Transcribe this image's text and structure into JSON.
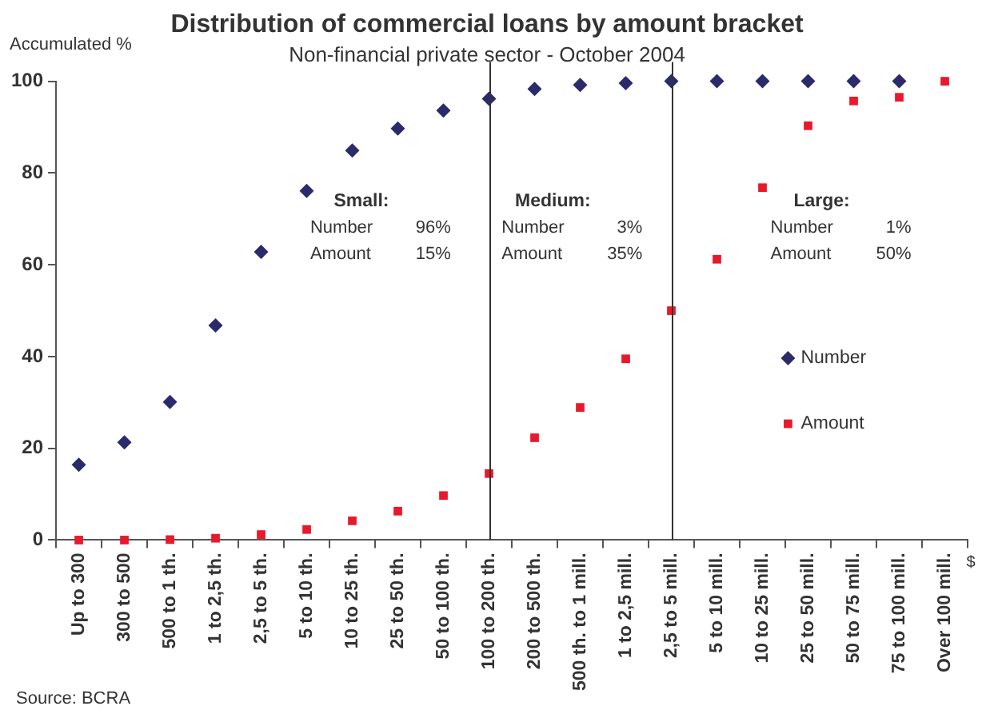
{
  "chart_data": {
    "type": "scatter",
    "title": "Distribution of commercial loans by amount bracket",
    "subtitle": "Non-financial private sector - October 2004",
    "ylabel": "Accumulated %",
    "xlabel": "$",
    "categories": [
      "Up to 300",
      "300 to 500",
      "500 to 1 th.",
      "1 to 2,5 th.",
      "2,5 to 5 th.",
      "5 to 10 th.",
      "10 to 25 th.",
      "25 to 50 th.",
      "50 to 100 th.",
      "100 to 200 th.",
      "200 to 500 th.",
      "500 th. to 1 mill.",
      "1 to 2,5 mill.",
      "2,5 to 5 mill.",
      "5 to 10 mill.",
      "10 to 25 mill.",
      "25 to 50 mill.",
      "50 to 75 mill.",
      "75 to 100 mill.",
      "Over 100 mill."
    ],
    "series": [
      {
        "name": "Number",
        "color": "#2b2a6b",
        "marker": "diamond",
        "values": [
          16.4,
          21.3,
          30.1,
          46.8,
          62.8,
          76.1,
          84.9,
          89.7,
          93.6,
          96.2,
          98.3,
          99.2,
          99.6,
          100,
          100,
          100,
          100,
          100,
          100,
          null
        ]
      },
      {
        "name": "Amount",
        "color": "#e8192c",
        "marker": "square",
        "values": [
          0,
          0,
          0.1,
          0.4,
          1.2,
          2.3,
          4.2,
          6.3,
          9.7,
          14.5,
          22.3,
          28.9,
          39.5,
          50,
          61.2,
          76.8,
          90.3,
          95.7,
          96.5,
          100
        ]
      }
    ],
    "ylim": [
      0,
      100
    ],
    "yticks": [
      0,
      20,
      40,
      60,
      80,
      100
    ],
    "grid": false,
    "legend": "right",
    "ref_lines": [
      {
        "axis": "x",
        "value": "100 to 200 th.",
        "color": "#333333"
      },
      {
        "axis": "x",
        "value": "2,5 to 5 mill.",
        "color": "#333333"
      }
    ],
    "annotations": [
      "Small:",
      "Number\t96%",
      "Amount\t15%",
      "Medium:",
      "Number\t3%",
      "Amount\t35%",
      "Large:",
      "Number\t1%",
      "Amount\t50%",
      "Source: BCRA"
    ]
  }
}
